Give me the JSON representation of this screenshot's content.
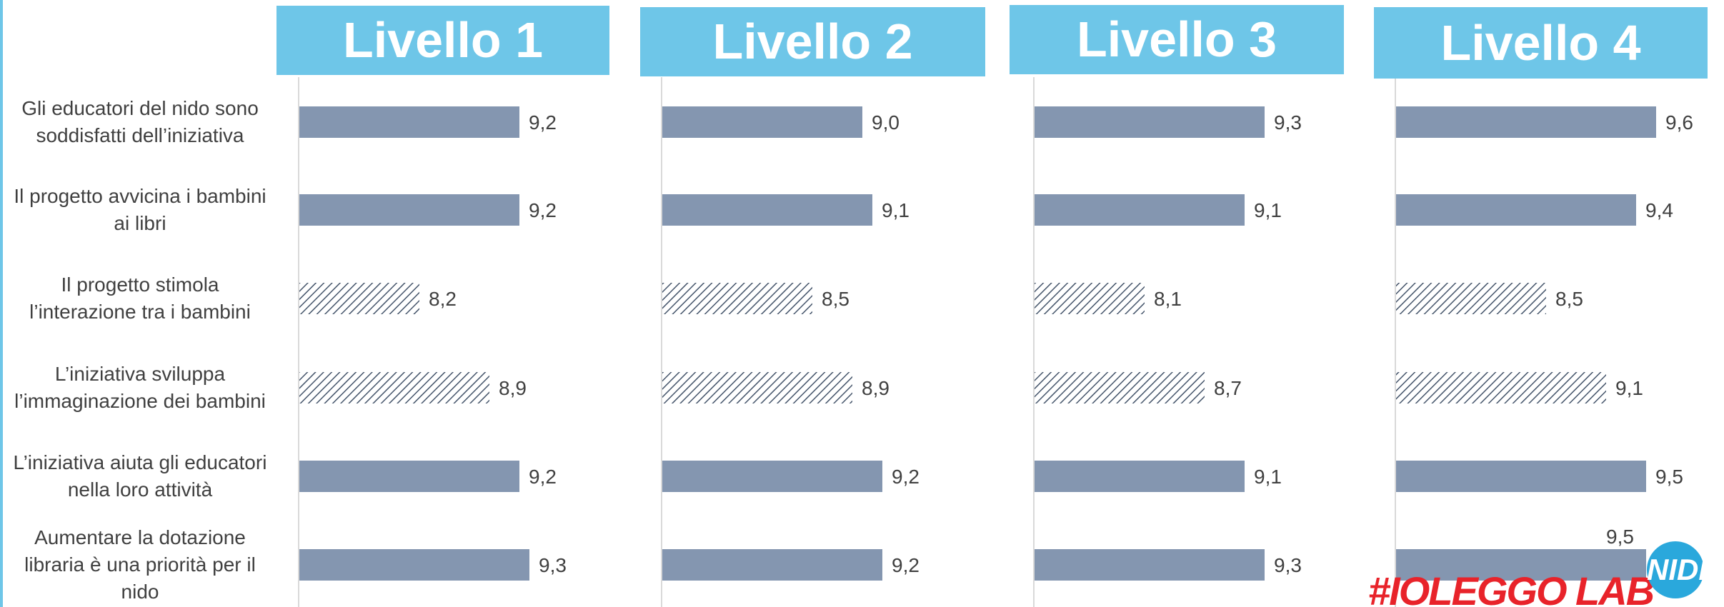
{
  "chart_data": {
    "type": "bar",
    "orientation": "horizontal",
    "categories": [
      "Gli educatori del nido sono soddisfatti dell’iniziativa",
      "Il progetto avvicina i bambini ai libri",
      "Il progetto stimola l’interazione tra i bambini",
      "L’iniziativa sviluppa l’immaginazione dei bambini",
      "L’iniziativa aiuta gli educatori nella loro attività",
      "Aumentare la dotazione libraria è una priorità per il nido"
    ],
    "category_lines": [
      [
        "Gli educatori del nido sono",
        "soddisfatti dell’iniziativa"
      ],
      [
        "Il progetto avvicina i bambini",
        "ai libri"
      ],
      [
        "Il progetto stimola",
        "l’interazione tra i bambini"
      ],
      [
        "L’iniziativa sviluppa",
        "l’immaginazione dei bambini"
      ],
      [
        "L’iniziativa aiuta gli educatori",
        "nella loro attività"
      ],
      [
        "Aumentare la dotazione",
        "libraria è una priorità per il",
        "nido"
      ]
    ],
    "hatched_categories": [
      2,
      3
    ],
    "panels": [
      {
        "title": "Livello 1",
        "values": [
          9.2,
          9.2,
          8.2,
          8.9,
          9.2,
          9.3
        ],
        "labels": [
          "9,2",
          "9,2",
          "8,2",
          "8,9",
          "9,2",
          "9,3"
        ]
      },
      {
        "title": "Livello 2",
        "values": [
          9.0,
          9.1,
          8.5,
          8.9,
          9.2,
          9.2
        ],
        "labels": [
          "9,0",
          "9,1",
          "8,5",
          "8,9",
          "9,2",
          "9,2"
        ]
      },
      {
        "title": "Livello 3",
        "values": [
          9.3,
          9.1,
          8.1,
          8.7,
          9.1,
          9.3
        ],
        "labels": [
          "9,3",
          "9,1",
          "8,1",
          "8,7",
          "9,1",
          "9,3"
        ]
      },
      {
        "title": "Livello 4",
        "values": [
          9.6,
          9.4,
          8.5,
          9.1,
          9.5,
          9.5
        ],
        "labels": [
          "9,6",
          "9,4",
          "8,5",
          "9,1",
          "9,5",
          "9,5"
        ]
      }
    ],
    "xlim": [
      7,
      10
    ],
    "grid": false,
    "legend": "none",
    "colors": {
      "bar": "#8496b0",
      "hatch": "#44546a",
      "header": "#6ec6e8",
      "text": "#404040",
      "axis": "#d9d9d9"
    }
  },
  "logo": {
    "text": "#IOLEGGO LAB",
    "badge": "NIDI"
  }
}
